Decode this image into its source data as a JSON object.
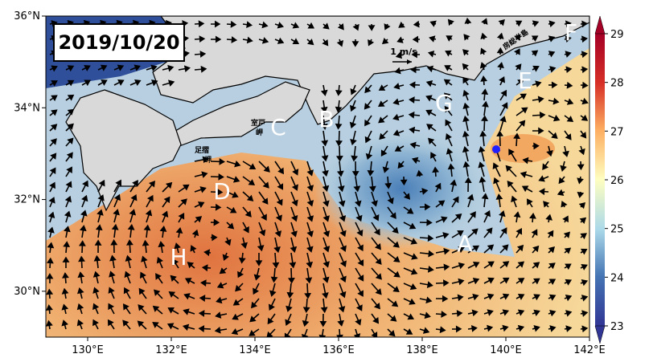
{
  "map": {
    "date": "2019/10/20",
    "scale_label": "1 m/s",
    "lon_ticks": [
      {
        "value": 130,
        "label": "130°E"
      },
      {
        "value": 132,
        "label": "132°E"
      },
      {
        "value": 134,
        "label": "134°E"
      },
      {
        "value": 136,
        "label": "136°E"
      },
      {
        "value": 138,
        "label": "138°E"
      },
      {
        "value": 140,
        "label": "140°E"
      },
      {
        "value": 142,
        "label": "142°E"
      }
    ],
    "lat_ticks": [
      {
        "value": 30,
        "label": "30°N"
      },
      {
        "value": 32,
        "label": "32°N"
      },
      {
        "value": 34,
        "label": "34°N"
      },
      {
        "value": 36,
        "label": "36°N"
      }
    ],
    "xlim": [
      129,
      142
    ],
    "ylim": [
      29,
      36
    ],
    "colorbar": {
      "lim": [
        23,
        29
      ],
      "ticks": [
        23,
        24,
        25,
        26,
        27,
        28,
        29
      ]
    },
    "letters": [
      "A",
      "B",
      "C",
      "D",
      "E",
      "F",
      "G",
      "H"
    ],
    "places": {
      "muroto": [
        "室戸",
        "岬"
      ],
      "ashizuri": [
        "足摺",
        "岬"
      ],
      "boso": "房総半島"
    }
  }
}
